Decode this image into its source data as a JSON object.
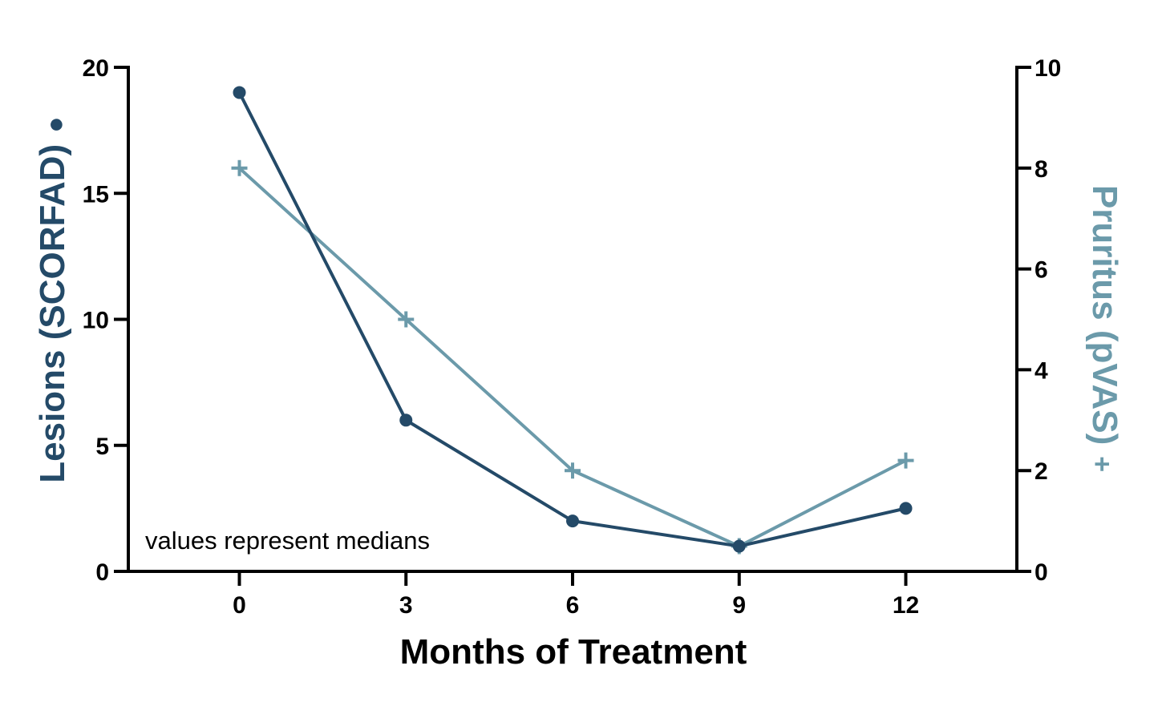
{
  "chart_data": {
    "type": "line",
    "xlabel": "Months of Treatment",
    "ylabel_left": "Lesions (SCORFAD)",
    "ylabel_left_marker": "●",
    "ylabel_right": "Pruritus (pVAS)",
    "ylabel_right_marker": "+",
    "annotation": "values represent medians",
    "x": [
      0,
      3,
      6,
      9,
      12
    ],
    "x_ticks": [
      "0",
      "3",
      "6",
      "9",
      "12"
    ],
    "xlim": [
      -2,
      14
    ],
    "ylim_left": [
      0,
      20
    ],
    "ylim_right": [
      0,
      10
    ],
    "y_ticks_left": [
      "0",
      "5",
      "10",
      "15",
      "20"
    ],
    "y_ticks_right": [
      "0",
      "2",
      "4",
      "6",
      "8",
      "10"
    ],
    "grid": false,
    "series": [
      {
        "name": "Lesions (SCORFAD)",
        "axis": "left",
        "marker": "circle",
        "color": "#244a68",
        "values": [
          19,
          6,
          2,
          1,
          2.5
        ]
      },
      {
        "name": "Pruritus (pVAS)",
        "axis": "right",
        "marker": "plus",
        "color": "#6b9aaa",
        "values": [
          8,
          5,
          2,
          0.5,
          2.2
        ]
      }
    ]
  }
}
